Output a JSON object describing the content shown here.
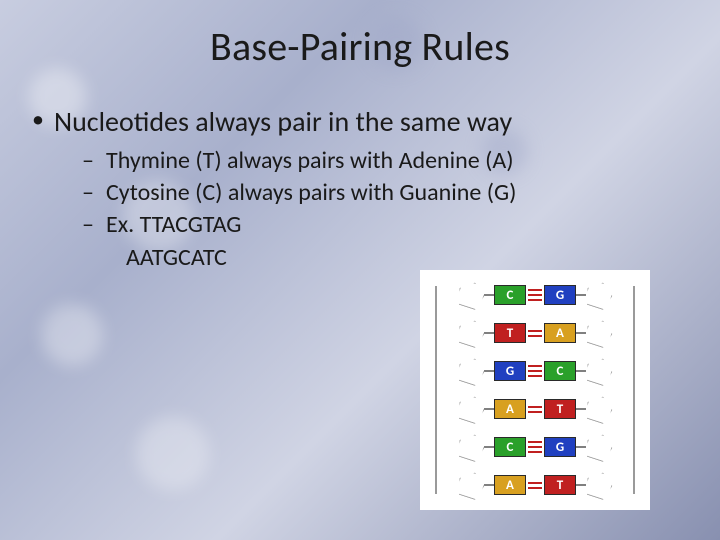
{
  "title": "Base-Pairing Rules",
  "bullets": {
    "main": "Nucleotides always pair in the same way",
    "subs": [
      "Thymine (T) always pairs with Adenine (A)",
      "Cytosine (C) always pairs with Guanine (G)",
      "Ex. TTACGTAG"
    ],
    "answer": "AATGCATC"
  },
  "diagram": {
    "background_color": "#ffffff",
    "pentagon_border": "#9a9a9a",
    "hbond_color": "#c02020",
    "base_colors": {
      "C": "#2aa02a",
      "G": "#2040c0",
      "T": "#c02020",
      "A": "#d8a020"
    },
    "pairs": [
      {
        "left": "C",
        "right": "G",
        "bonds": 3
      },
      {
        "left": "T",
        "right": "A",
        "bonds": 2
      },
      {
        "left": "G",
        "right": "C",
        "bonds": 3
      },
      {
        "left": "A",
        "right": "T",
        "bonds": 2
      },
      {
        "left": "C",
        "right": "G",
        "bonds": 3
      },
      {
        "left": "A",
        "right": "T",
        "bonds": 2
      }
    ]
  },
  "slide_bg_colors": [
    "#c8cde0",
    "#a8b0cc",
    "#d0d4e4",
    "#8890b0"
  ]
}
